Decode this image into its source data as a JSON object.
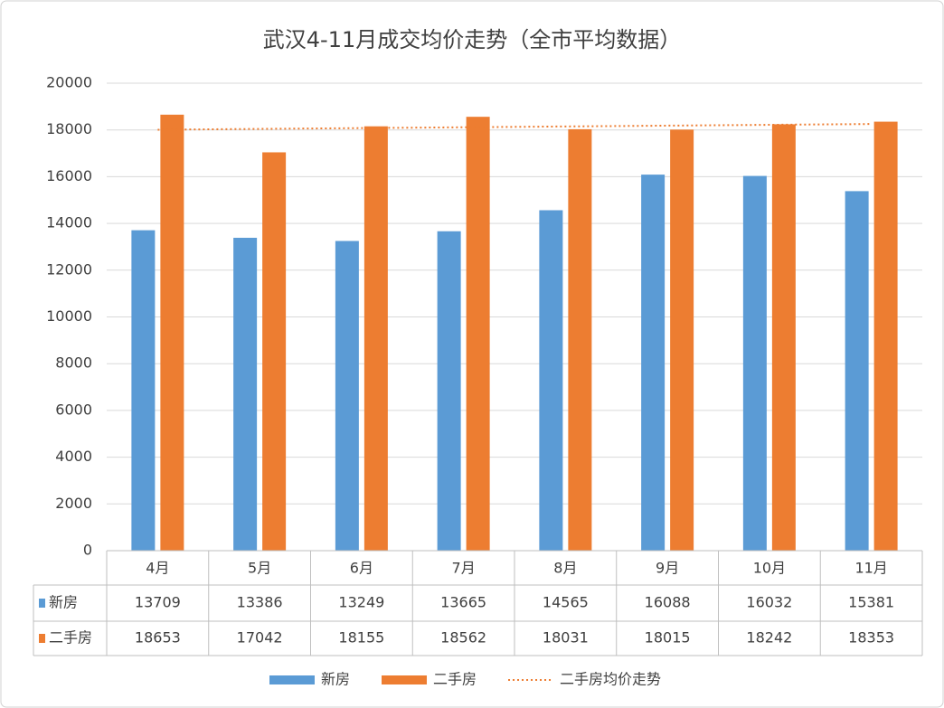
{
  "chart_data": {
    "type": "bar",
    "title": "武汉4-11月成交均价走势（全市平均数据）",
    "categories": [
      "4月",
      "5月",
      "6月",
      "7月",
      "8月",
      "9月",
      "10月",
      "11月"
    ],
    "series": [
      {
        "name": "新房",
        "color": "#5b9bd5",
        "values": [
          13709,
          13386,
          13249,
          13665,
          14565,
          16088,
          16032,
          15381
        ]
      },
      {
        "name": "二手房",
        "color": "#ed7d31",
        "values": [
          18653,
          17042,
          18155,
          18562,
          18031,
          18015,
          18242,
          18353
        ]
      },
      {
        "name": "二手房均价走势",
        "type": "line",
        "dotted": true,
        "color": "#ed7d31",
        "values": [
          18009,
          18044,
          18079,
          18114,
          18149,
          18184,
          18219,
          18254
        ]
      }
    ],
    "ylim": [
      0,
      20000
    ],
    "yticks": [
      0,
      2000,
      4000,
      6000,
      8000,
      10000,
      12000,
      14000,
      16000,
      18000,
      20000
    ],
    "grid": true,
    "data_table": true,
    "legend": "bottom"
  }
}
